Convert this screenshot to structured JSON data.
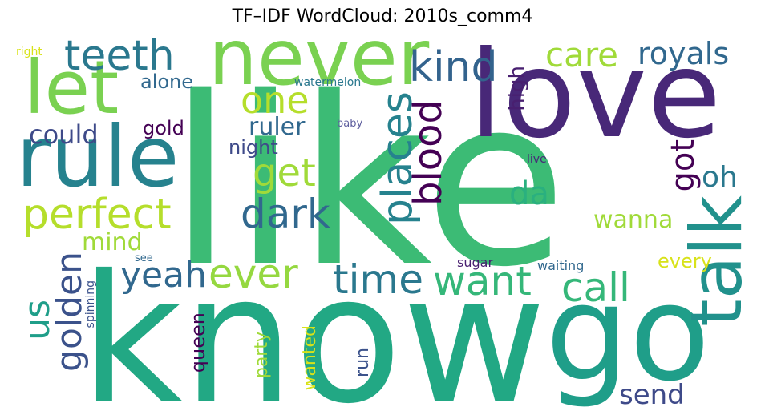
{
  "title": "TF–IDF WordCloud: 2010s_comm4",
  "words": [
    {
      "text": "like",
      "color": "#3cbb75",
      "vertical": false
    },
    {
      "text": "know",
      "color": "#22a884",
      "vertical": false
    },
    {
      "text": "love",
      "color": "#482878",
      "vertical": false
    },
    {
      "text": "go",
      "color": "#1f9e89",
      "vertical": false
    },
    {
      "text": "rule",
      "color": "#26828e",
      "vertical": false
    },
    {
      "text": "never",
      "color": "#7ad151",
      "vertical": false
    },
    {
      "text": "let",
      "color": "#7ad151",
      "vertical": false
    },
    {
      "text": "talk",
      "color": "#21918c",
      "vertical": true
    },
    {
      "text": "perfect",
      "color": "#b5de2b",
      "vertical": false
    },
    {
      "text": "teeth",
      "color": "#2a788e",
      "vertical": false
    },
    {
      "text": "kind",
      "color": "#33638d",
      "vertical": false
    },
    {
      "text": "places",
      "color": "#26828e",
      "vertical": true
    },
    {
      "text": "blood",
      "color": "#440154",
      "vertical": true
    },
    {
      "text": "dark",
      "color": "#31688e",
      "vertical": false
    },
    {
      "text": "get",
      "color": "#a0da39",
      "vertical": false
    },
    {
      "text": "one",
      "color": "#b5de2b",
      "vertical": false
    },
    {
      "text": "ever",
      "color": "#95d840",
      "vertical": false
    },
    {
      "text": "time",
      "color": "#2a788e",
      "vertical": false
    },
    {
      "text": "want",
      "color": "#35b779",
      "vertical": false
    },
    {
      "text": "call",
      "color": "#35b779",
      "vertical": false
    },
    {
      "text": "yeah",
      "color": "#31688e",
      "vertical": false
    },
    {
      "text": "care",
      "color": "#a0da39",
      "vertical": false
    },
    {
      "text": "royals",
      "color": "#31688e",
      "vertical": false
    },
    {
      "text": "golden",
      "color": "#3b528b",
      "vertical": true
    },
    {
      "text": "us",
      "color": "#1f9e89",
      "vertical": true
    },
    {
      "text": "da",
      "color": "#2ab07f",
      "vertical": false
    },
    {
      "text": "got",
      "color": "#440154",
      "vertical": true
    },
    {
      "text": "oh",
      "color": "#2a788e",
      "vertical": false
    },
    {
      "text": "could",
      "color": "#3e4a89",
      "vertical": false
    },
    {
      "text": "ruler",
      "color": "#31688e",
      "vertical": false
    },
    {
      "text": "wanna",
      "color": "#a0da39",
      "vertical": false
    },
    {
      "text": "mind",
      "color": "#a0da39",
      "vertical": false
    },
    {
      "text": "alone",
      "color": "#31688e",
      "vertical": false
    },
    {
      "text": "gold",
      "color": "#440154",
      "vertical": false
    },
    {
      "text": "night",
      "color": "#3e4a89",
      "vertical": false
    },
    {
      "text": "high",
      "color": "#481f70",
      "vertical": true
    },
    {
      "text": "send",
      "color": "#3e4a89",
      "vertical": false
    },
    {
      "text": "every",
      "color": "#d8e219",
      "vertical": false
    },
    {
      "text": "queen",
      "color": "#440154",
      "vertical": true
    },
    {
      "text": "party",
      "color": "#a0da39",
      "vertical": true
    },
    {
      "text": "wanted",
      "color": "#d8e219",
      "vertical": true
    },
    {
      "text": "run",
      "color": "#3b528b",
      "vertical": true
    },
    {
      "text": "sugar",
      "color": "#481f70",
      "vertical": false
    },
    {
      "text": "waiting",
      "color": "#31688e",
      "vertical": false
    },
    {
      "text": "watermelon",
      "color": "#2a788e",
      "vertical": false
    },
    {
      "text": "baby",
      "color": "#5e5e9e",
      "vertical": false
    },
    {
      "text": "live",
      "color": "#482878",
      "vertical": false
    },
    {
      "text": "right",
      "color": "#d8e219",
      "vertical": false
    },
    {
      "text": "see",
      "color": "#31688e",
      "vertical": false
    },
    {
      "text": "spinning",
      "color": "#3b528b",
      "vertical": true
    }
  ]
}
